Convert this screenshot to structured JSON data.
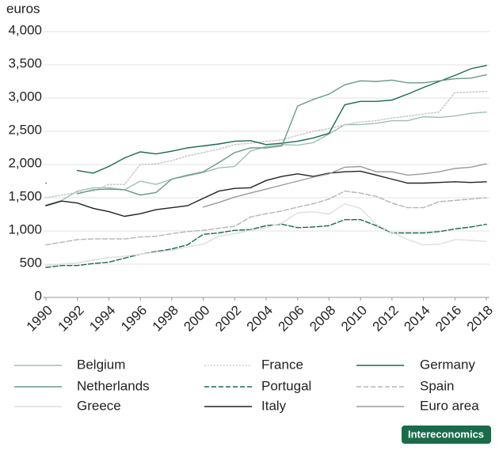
{
  "chart_data": {
    "type": "line",
    "y_label": "euros",
    "x": [
      1990,
      1991,
      1992,
      1993,
      1994,
      1995,
      1996,
      1997,
      1998,
      1999,
      2000,
      2001,
      2002,
      2003,
      2004,
      2005,
      2006,
      2007,
      2008,
      2009,
      2010,
      2011,
      2012,
      2013,
      2014,
      2015,
      2016,
      2017,
      2018
    ],
    "xlim": [
      1990,
      2018
    ],
    "xticks": [
      1990,
      1992,
      1994,
      1996,
      1998,
      2000,
      2002,
      2004,
      2006,
      2008,
      2010,
      2012,
      2014,
      2016,
      2018
    ],
    "ylim": [
      0,
      4000
    ],
    "yticks": [
      0,
      500,
      {
        "value": 1000,
        "label": "1,000"
      },
      {
        "value": 1500,
        "label": "1,500"
      },
      {
        "value": 2000,
        "label": "2,000"
      },
      {
        "value": 2500,
        "label": "2,500"
      },
      {
        "value": 3000,
        "label": "3,000"
      },
      {
        "value": 3500,
        "label": "3,500"
      },
      {
        "value": 4000,
        "label": "4,000"
      }
    ],
    "grid": true,
    "legend": "bottom",
    "series": [
      {
        "name": "Belgium",
        "color": "#9dbfb2",
        "dash": "solid",
        "values": [
          1390,
          1460,
          1600,
          1650,
          1650,
          1620,
          1750,
          1700,
          1780,
          1830,
          1880,
          1950,
          1970,
          2200,
          2270,
          2300,
          2290,
          2330,
          2460,
          2600,
          2600,
          2620,
          2660,
          2660,
          2720,
          2710,
          2730,
          2770,
          2790
        ]
      },
      {
        "name": "France",
        "color": "#c4c4c4",
        "dash": "dotted",
        "values": [
          1500,
          1540,
          1580,
          1600,
          1700,
          1700,
          2000,
          2010,
          2060,
          2130,
          2180,
          2230,
          2300,
          2320,
          2350,
          2370,
          2440,
          2500,
          2540,
          2600,
          2640,
          2660,
          2700,
          2730,
          2760,
          2790,
          3080,
          3090,
          3100
        ]
      },
      {
        "name": "Germany",
        "color": "#1a6b4a",
        "dash": "solid",
        "values": [
          1720,
          null,
          1910,
          1870,
          1970,
          2100,
          2190,
          2160,
          2200,
          2250,
          2280,
          2310,
          2350,
          2360,
          2300,
          2320,
          2350,
          2400,
          2470,
          2900,
          2950,
          2950,
          2970,
          3060,
          3160,
          3250,
          3340,
          3440,
          3490
        ]
      },
      {
        "name": "Netherlands",
        "color": "#6b9a86",
        "dash": "solid",
        "values": [
          null,
          null,
          1560,
          1620,
          1630,
          1620,
          1540,
          1580,
          1780,
          1840,
          1890,
          2030,
          2180,
          2250,
          2250,
          2280,
          2880,
          2980,
          3060,
          3200,
          3260,
          3250,
          3270,
          3230,
          3230,
          3260,
          3290,
          3300,
          3350
        ]
      },
      {
        "name": "Portugal",
        "color": "#1a6b4a",
        "dash": "dashed",
        "values": [
          450,
          480,
          480,
          510,
          530,
          590,
          650,
          690,
          730,
          790,
          950,
          970,
          1010,
          1020,
          1080,
          1100,
          1050,
          1060,
          1080,
          1170,
          1170,
          1080,
          970,
          970,
          970,
          990,
          1030,
          1060,
          1100
        ]
      },
      {
        "name": "Spain",
        "color": "#b5b5b5",
        "dash": "dashed",
        "values": [
          790,
          830,
          870,
          880,
          880,
          880,
          910,
          920,
          960,
          990,
          1010,
          1040,
          1070,
          1210,
          1260,
          1300,
          1360,
          1410,
          1480,
          1600,
          1570,
          1520,
          1420,
          1350,
          1350,
          1440,
          1460,
          1480,
          1500
        ]
      },
      {
        "name": "Greece",
        "color": "#dedede",
        "dash": "solid",
        "values": [
          480,
          500,
          520,
          560,
          600,
          620,
          650,
          680,
          710,
          760,
          800,
          920,
          960,
          1010,
          1050,
          1120,
          1270,
          1290,
          1250,
          1410,
          1340,
          1100,
          980,
          870,
          790,
          800,
          870,
          860,
          840
        ]
      },
      {
        "name": "Italy",
        "color": "#222222",
        "dash": "solid",
        "values": [
          1380,
          1450,
          1420,
          1340,
          1290,
          1220,
          1260,
          1320,
          1350,
          1380,
          1490,
          1600,
          1640,
          1650,
          1760,
          1820,
          1860,
          1820,
          1870,
          1890,
          1900,
          1840,
          1780,
          1720,
          1720,
          1730,
          1740,
          1730,
          1740
        ]
      },
      {
        "name": "Euro area",
        "color": "#9a9a9a",
        "dash": "solid",
        "values": [
          null,
          null,
          null,
          null,
          null,
          null,
          null,
          null,
          null,
          null,
          1360,
          1430,
          1510,
          1570,
          1630,
          1690,
          1750,
          1810,
          1860,
          1960,
          1970,
          1890,
          1890,
          1840,
          1860,
          1890,
          1940,
          1960,
          2010
        ]
      }
    ]
  },
  "logo": "Intereconomics"
}
